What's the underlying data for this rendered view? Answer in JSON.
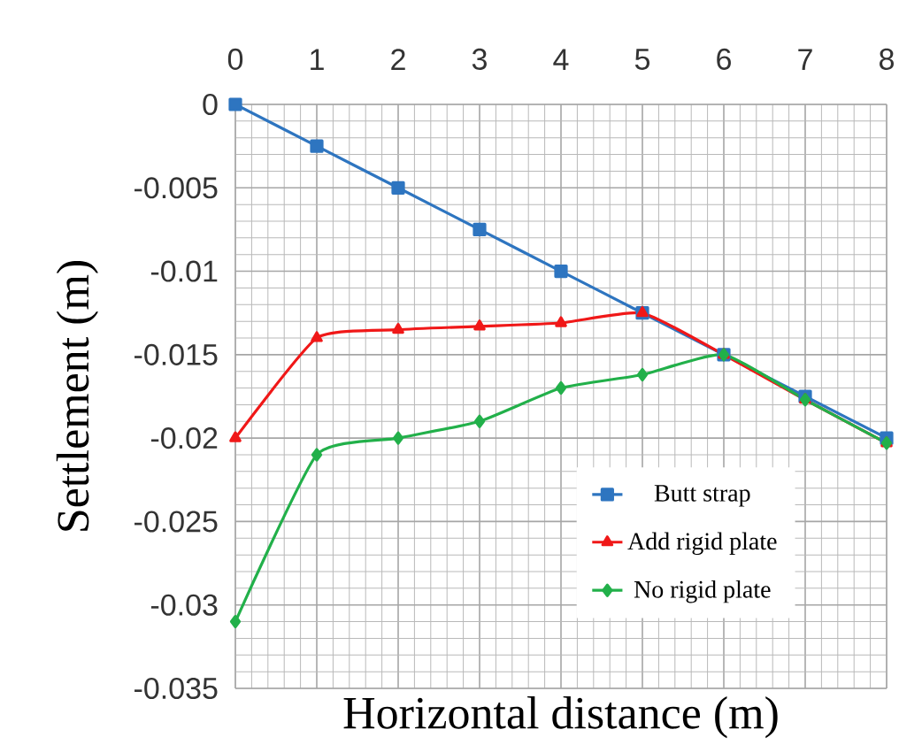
{
  "chart_data": {
    "type": "line",
    "xlabel": "Horizontal distance (m)",
    "ylabel": "Settlement (m)",
    "x": [
      0,
      1,
      2,
      3,
      4,
      5,
      6,
      7,
      8
    ],
    "xlim": [
      0,
      8
    ],
    "xticks": [
      0,
      1,
      2,
      3,
      4,
      5,
      6,
      7,
      8
    ],
    "ylim": [
      -0.035,
      0
    ],
    "yticks": [
      -0.035,
      -0.03,
      -0.025,
      -0.02,
      -0.015,
      -0.01,
      -0.005,
      0
    ],
    "grid": true,
    "legend": "bottom right",
    "series": [
      {
        "name": "Butt strap",
        "color": "#2e75c0",
        "marker": "square",
        "values": [
          0,
          -0.0025,
          -0.005,
          -0.0075,
          -0.01,
          -0.0125,
          -0.015,
          -0.0175,
          -0.02
        ]
      },
      {
        "name": "Add rigid plate",
        "color": "#f01818",
        "marker": "triangle",
        "values": [
          -0.02,
          -0.014,
          -0.0135,
          -0.0133,
          -0.0131,
          -0.0125,
          -0.015,
          -0.0177,
          -0.0203
        ]
      },
      {
        "name": "No rigid plate",
        "color": "#22b04a",
        "marker": "diamond",
        "values": [
          -0.031,
          -0.021,
          -0.02,
          -0.019,
          -0.017,
          -0.0162,
          -0.015,
          -0.0177,
          -0.0203
        ]
      }
    ]
  }
}
